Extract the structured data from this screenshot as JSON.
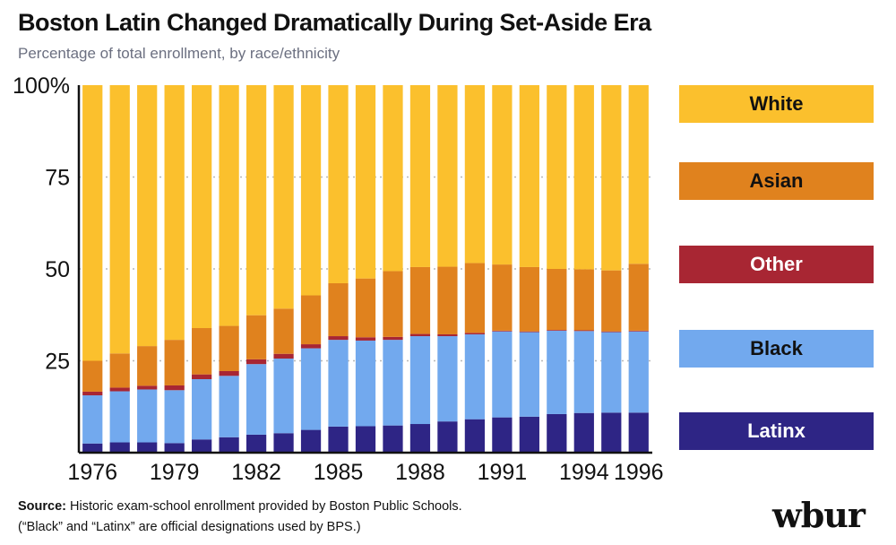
{
  "title": "Boston Latin Changed Dramatically During Set-Aside Era",
  "subtitle": "Percentage of total enrollment, by race/ethnicity",
  "source": {
    "label": "Source:",
    "text": "Historic exam-school enrollment provided by Boston Public Schools.",
    "note": "(“Black” and “Latinx” are official designations used by BPS.)"
  },
  "logo": "wbur",
  "colors": {
    "White": "#fbc02d",
    "Asian": "#e0821e",
    "Other": "#a82633",
    "Black": "#72a9ee",
    "Latinx": "#2e2585"
  },
  "legend": [
    {
      "label": "White",
      "color": "#fbc02d",
      "text_color": "#111111"
    },
    {
      "label": "Asian",
      "color": "#e0821e",
      "text_color": "#111111"
    },
    {
      "label": "Other",
      "color": "#a82633",
      "text_color": "#ffffff"
    },
    {
      "label": "Black",
      "color": "#72a9ee",
      "text_color": "#111111"
    },
    {
      "label": "Latinx",
      "color": "#2e2585",
      "text_color": "#ffffff"
    }
  ],
  "chart_data": {
    "type": "bar",
    "stacked": true,
    "title": "Boston Latin Changed Dramatically During Set-Aside Era",
    "subtitle": "Percentage of total enrollment, by race/ethnicity",
    "ylabel": "",
    "xlabel": "",
    "ylim": [
      0,
      100
    ],
    "yticks": [
      25,
      50,
      75,
      100
    ],
    "ytick_labels": [
      "25",
      "50",
      "75",
      "100%"
    ],
    "grid": true,
    "categories": [
      1976,
      1977,
      1978,
      1979,
      1980,
      1981,
      1982,
      1983,
      1984,
      1985,
      1986,
      1987,
      1988,
      1989,
      1990,
      1991,
      1992,
      1993,
      1994,
      1995,
      1996
    ],
    "xtick_labels": [
      "1976",
      "1979",
      "1982",
      "1985",
      "1988",
      "1991",
      "1994",
      "1996"
    ],
    "series": [
      {
        "name": "Latinx",
        "values": [
          2.5,
          2.8,
          2.8,
          2.6,
          3.6,
          4.2,
          4.9,
          5.3,
          6.2,
          7.1,
          7.2,
          7.4,
          7.8,
          8.5,
          9.1,
          9.6,
          9.8,
          10.5,
          10.8,
          10.9,
          10.9
        ]
      },
      {
        "name": "Black",
        "values": [
          13.1,
          13.9,
          14.4,
          14.4,
          16.4,
          16.7,
          19.2,
          20.3,
          22.2,
          23.6,
          23.3,
          23.3,
          23.9,
          23.2,
          23.1,
          23.4,
          23.0,
          22.7,
          22.3,
          21.9,
          22.1
        ]
      },
      {
        "name": "Other",
        "values": [
          1.0,
          1.0,
          1.0,
          1.3,
          1.3,
          1.3,
          1.3,
          1.3,
          1.1,
          1.0,
          0.9,
          0.8,
          0.6,
          0.5,
          0.4,
          0.2,
          0.2,
          0.2,
          0.2,
          0.2,
          0.2
        ]
      },
      {
        "name": "Asian",
        "values": [
          8.4,
          9.3,
          10.8,
          12.4,
          12.6,
          12.3,
          12.0,
          12.3,
          13.3,
          14.4,
          16.0,
          17.9,
          18.2,
          18.4,
          19.0,
          18.0,
          17.5,
          16.6,
          16.6,
          16.6,
          18.2
        ]
      },
      {
        "name": "White",
        "values": [
          75.0,
          73.0,
          71.0,
          69.3,
          66.1,
          65.5,
          62.6,
          60.8,
          57.2,
          53.9,
          52.6,
          50.6,
          49.5,
          49.4,
          48.4,
          48.8,
          49.5,
          50.0,
          50.1,
          50.4,
          48.6
        ]
      }
    ]
  }
}
